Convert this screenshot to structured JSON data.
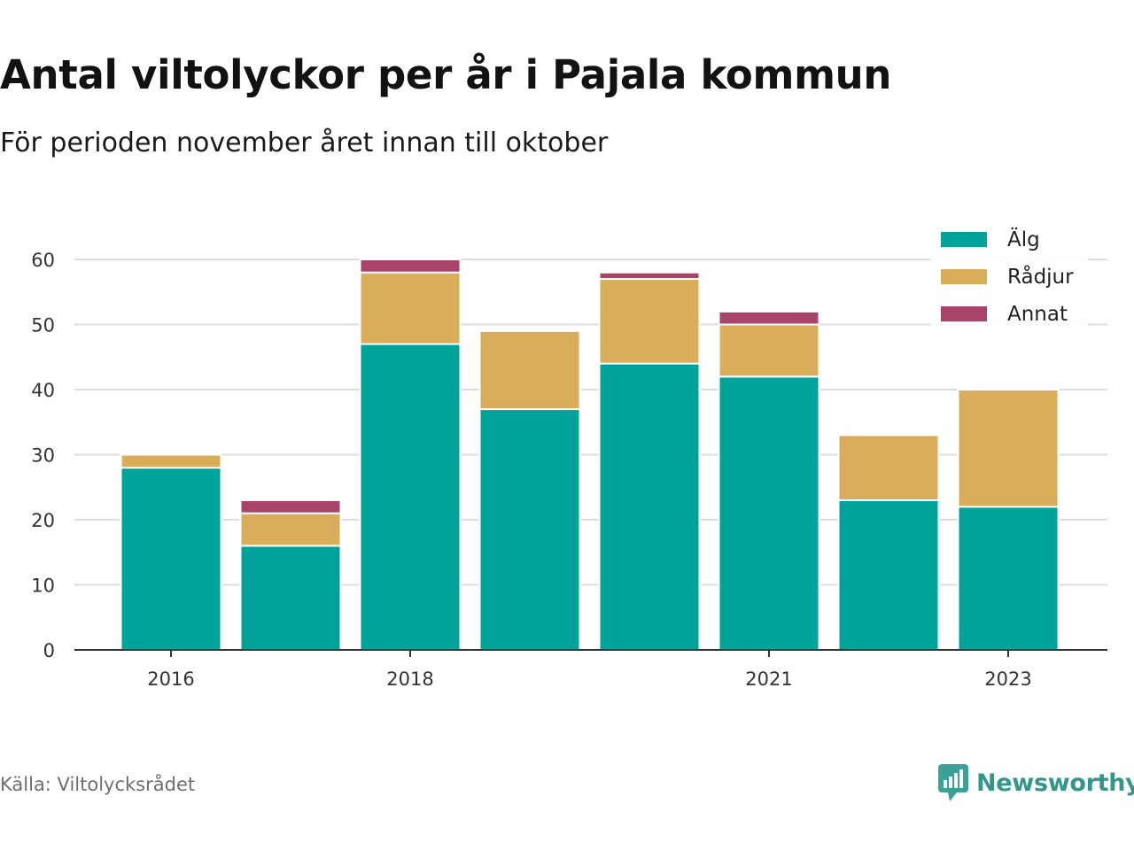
{
  "title": "Antal viltolyckor per år i Pajala kommun",
  "subtitle": "För perioden november året innan till oktober",
  "source": "Källa: Viltolycksrådet",
  "brand": "Newsworthy",
  "colors": {
    "alg": "#00a39a",
    "radjur": "#d9ad59",
    "annat": "#a8446a",
    "grid": "#dddddd",
    "axis": "#333333"
  },
  "chart_data": {
    "type": "bar",
    "stacked": true,
    "categories": [
      "2016",
      "2017",
      "2018",
      "2019",
      "2020",
      "2021",
      "2022",
      "2023"
    ],
    "x_tick_labels": [
      "2016",
      "",
      "2018",
      "",
      "",
      "2021",
      "",
      "2023"
    ],
    "series": [
      {
        "name": "Älg",
        "values": [
          28,
          16,
          47,
          37,
          44,
          42,
          23,
          22
        ]
      },
      {
        "name": "Rådjur",
        "values": [
          2,
          5,
          11,
          12,
          13,
          8,
          10,
          18
        ]
      },
      {
        "name": "Annat",
        "values": [
          0,
          2,
          2,
          0,
          1,
          2,
          0,
          0
        ]
      }
    ],
    "y_ticks": [
      "0",
      "10",
      "20",
      "30",
      "40",
      "50",
      "60"
    ],
    "ylim": [
      0,
      60
    ],
    "grid": true,
    "legend": "top-right"
  }
}
